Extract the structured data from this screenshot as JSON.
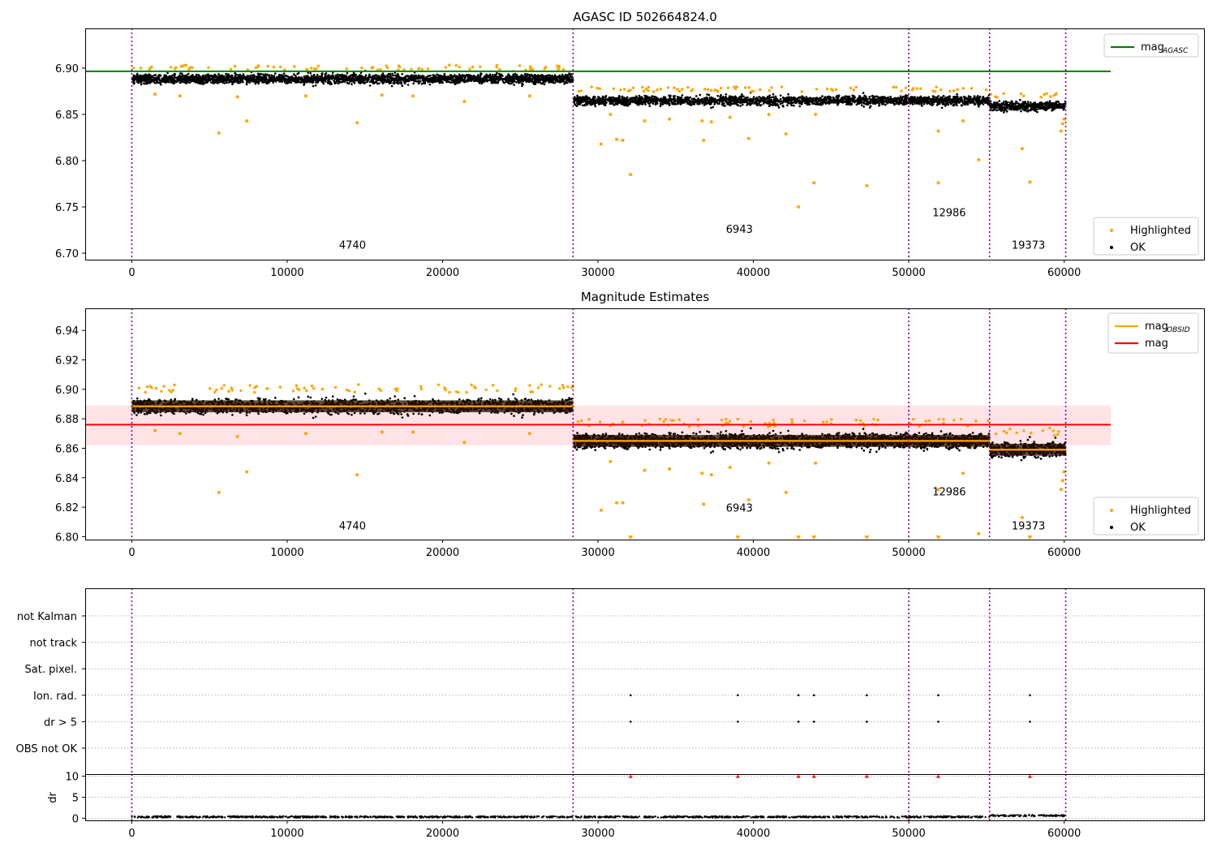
{
  "colors": {
    "highlight": "#ffa500",
    "ok": "#000000",
    "agasc_line": "#008000",
    "mag_line": "#ff0000",
    "mag_band": "#ffc0c8",
    "obsid_line": "#ffa500",
    "boundary": "#800080",
    "grid": "#b0b0b0",
    "flag_marker": "#ff0000"
  },
  "chart_data": [
    {
      "type": "scatter",
      "title": "AGASC ID 502664824.0",
      "xlim": [
        -3000,
        69000
      ],
      "ylim": [
        6.693,
        6.943
      ],
      "xticks": [
        0,
        10000,
        20000,
        30000,
        40000,
        50000,
        60000
      ],
      "xtick_labels": [
        "0",
        "10000",
        "20000",
        "30000",
        "40000",
        "50000",
        "60000"
      ],
      "yticks": [
        6.7,
        6.75,
        6.8,
        6.85,
        6.9
      ],
      "ytick_labels": [
        "6.70",
        "6.75",
        "6.80",
        "6.85",
        "6.90"
      ],
      "obsid_boundaries": [
        0,
        28400,
        50000,
        55200,
        60100
      ],
      "segments": [
        {
          "x": [
            0,
            28400
          ],
          "y_mean": 6.8885,
          "spread": 0.009
        },
        {
          "x": [
            28400,
            50000
          ],
          "y_mean": 6.865,
          "spread": 0.009
        },
        {
          "x": [
            50000,
            55200
          ],
          "y_mean": 6.865,
          "spread": 0.009
        },
        {
          "x": [
            55200,
            60100
          ],
          "y_mean": 6.859,
          "spread": 0.009
        }
      ],
      "agasc_mag": 6.8966,
      "agasc_line_x": [
        -3000,
        63000
      ],
      "obsid_labels": [
        {
          "text": "4740",
          "x": 14200,
          "y": 6.705
        },
        {
          "text": "6943",
          "x": 39100,
          "y": 6.722
        },
        {
          "text": "12986",
          "x": 52600,
          "y": 6.74
        },
        {
          "text": "19373",
          "x": 57700,
          "y": 6.705
        }
      ],
      "outliers": [
        [
          5600,
          6.83
        ],
        [
          7400,
          6.843
        ],
        [
          14500,
          6.841
        ],
        [
          30200,
          6.818
        ],
        [
          31200,
          6.823
        ],
        [
          31600,
          6.822
        ],
        [
          32100,
          6.785
        ],
        [
          36700,
          6.843
        ],
        [
          36800,
          6.822
        ],
        [
          37300,
          6.842
        ],
        [
          39700,
          6.824
        ],
        [
          42100,
          6.829
        ],
        [
          42900,
          6.75
        ],
        [
          43900,
          6.776
        ],
        [
          47300,
          6.773
        ],
        [
          51900,
          6.776
        ],
        [
          51900,
          6.832
        ],
        [
          54500,
          6.801
        ],
        [
          57300,
          6.813
        ],
        [
          57800,
          6.777
        ],
        [
          59800,
          6.832
        ],
        [
          59900,
          6.84
        ],
        [
          60000,
          6.845
        ],
        [
          21400,
          6.864
        ],
        [
          25600,
          6.87
        ],
        [
          16100,
          6.871
        ],
        [
          11200,
          6.87
        ],
        [
          3100,
          6.87
        ],
        [
          6800,
          6.869
        ],
        [
          1500,
          6.872
        ],
        [
          18100,
          6.87
        ],
        [
          41000,
          6.85
        ],
        [
          44000,
          6.85
        ],
        [
          33000,
          6.843
        ],
        [
          34600,
          6.845
        ],
        [
          38500,
          6.847
        ],
        [
          53500,
          6.843
        ],
        [
          30800,
          6.85
        ]
      ],
      "legends": [
        {
          "entries": [
            {
              "label": "mag",
              "sub": "AGASC",
              "kind": "line",
              "color": "#008000"
            }
          ],
          "position": "upper-right"
        },
        {
          "entries": [
            {
              "label": "Highlighted",
              "kind": "dot",
              "color": "#ffa500"
            },
            {
              "label": "OK",
              "kind": "dot",
              "color": "#000000"
            }
          ],
          "position": "lower-right"
        }
      ]
    },
    {
      "type": "scatter",
      "title": "Magnitude Estimates",
      "xlim": [
        -3000,
        69000
      ],
      "ylim": [
        6.798,
        6.955
      ],
      "xticks": [
        0,
        10000,
        20000,
        30000,
        40000,
        50000,
        60000
      ],
      "xtick_labels": [
        "0",
        "10000",
        "20000",
        "30000",
        "40000",
        "50000",
        "60000"
      ],
      "yticks": [
        6.8,
        6.82,
        6.84,
        6.86,
        6.88,
        6.9,
        6.92,
        6.94
      ],
      "ytick_labels": [
        "6.80",
        "6.82",
        "6.84",
        "6.86",
        "6.88",
        "6.90",
        "6.92",
        "6.94"
      ],
      "obsid_boundaries": [
        0,
        28400,
        50000,
        55200,
        60100
      ],
      "segments": [
        {
          "x": [
            0,
            28400
          ],
          "y_mean": 6.8885,
          "spread": 0.009
        },
        {
          "x": [
            28400,
            50000
          ],
          "y_mean": 6.865,
          "spread": 0.009
        },
        {
          "x": [
            50000,
            55200
          ],
          "y_mean": 6.865,
          "spread": 0.009
        },
        {
          "x": [
            55200,
            60100
          ],
          "y_mean": 6.859,
          "spread": 0.009
        }
      ],
      "mag": 6.876,
      "mag_band": [
        6.862,
        6.889
      ],
      "mag_line_x": [
        -3000,
        63000
      ],
      "obsid_labels": [
        {
          "text": "4740",
          "x": 14200,
          "y": 6.805
        },
        {
          "text": "6943",
          "x": 39100,
          "y": 6.817
        },
        {
          "text": "12986",
          "x": 52600,
          "y": 6.828
        },
        {
          "text": "19373",
          "x": 57700,
          "y": 6.805
        }
      ],
      "outliers": [
        [
          5600,
          6.83
        ],
        [
          7400,
          6.844
        ],
        [
          14500,
          6.842
        ],
        [
          30200,
          6.818
        ],
        [
          31200,
          6.823
        ],
        [
          31600,
          6.823
        ],
        [
          36700,
          6.843
        ],
        [
          36800,
          6.822
        ],
        [
          37300,
          6.842
        ],
        [
          39700,
          6.825
        ],
        [
          42100,
          6.83
        ],
        [
          51900,
          6.832
        ],
        [
          54500,
          6.802
        ],
        [
          57300,
          6.813
        ],
        [
          59800,
          6.832
        ],
        [
          59900,
          6.838
        ],
        [
          60000,
          6.844
        ],
        [
          21400,
          6.864
        ],
        [
          25600,
          6.87
        ],
        [
          16100,
          6.871
        ],
        [
          11200,
          6.87
        ],
        [
          3100,
          6.87
        ],
        [
          6800,
          6.868
        ],
        [
          1500,
          6.872
        ],
        [
          18100,
          6.871
        ],
        [
          41000,
          6.85
        ],
        [
          44000,
          6.85
        ],
        [
          33000,
          6.845
        ],
        [
          34600,
          6.846
        ],
        [
          38500,
          6.847
        ],
        [
          53500,
          6.843
        ],
        [
          30800,
          6.851
        ]
      ],
      "clipped_x": [
        32100,
        39000,
        42900,
        43900,
        47300,
        51900,
        57800
      ],
      "legends": [
        {
          "entries": [
            {
              "label": "mag",
              "sub": "OBSID",
              "kind": "line",
              "color": "#ffa500"
            },
            {
              "label": "mag",
              "kind": "line",
              "color": "#ff0000"
            }
          ],
          "position": "upper-right"
        },
        {
          "entries": [
            {
              "label": "Highlighted",
              "kind": "dot",
              "color": "#ffa500"
            },
            {
              "label": "OK",
              "kind": "dot",
              "color": "#000000"
            }
          ],
          "position": "lower-right"
        }
      ]
    },
    {
      "type": "scatter",
      "title": "",
      "xlim": [
        -3000,
        69000
      ],
      "flag_rows": [
        "not Kalman",
        "not track",
        "Sat. pixel.",
        "Ion. rad.",
        "dr > 5",
        "OBS not OK"
      ],
      "flag_points": {
        "Ion. rad.": [
          32100,
          39000,
          42900,
          43900,
          47300,
          51900,
          57800
        ],
        "dr > 5": [
          32100,
          39000,
          42900,
          43900,
          47300,
          51900,
          57800
        ]
      },
      "obsid_boundaries": [
        0,
        28400,
        50000,
        55200,
        60100
      ],
      "dr": {
        "ylabel": "dr",
        "ylim": [
          -0.5,
          10.5
        ],
        "yticks": [
          0,
          5,
          10
        ],
        "ytick_labels": [
          "0",
          "5",
          "10"
        ],
        "xticks": [
          0,
          10000,
          20000,
          30000,
          40000,
          50000,
          60000
        ],
        "xtick_labels": [
          "0",
          "10000",
          "20000",
          "30000",
          "40000",
          "50000",
          "60000"
        ],
        "segments": [
          {
            "x": [
              0,
              55200
            ],
            "level": 0.15
          },
          {
            "x": [
              55200,
              60100
            ],
            "level": 0.45
          }
        ],
        "clipped_x": [
          32100,
          39000,
          42900,
          43900,
          47300,
          51900,
          57800
        ],
        "clip_value": 10
      }
    }
  ]
}
